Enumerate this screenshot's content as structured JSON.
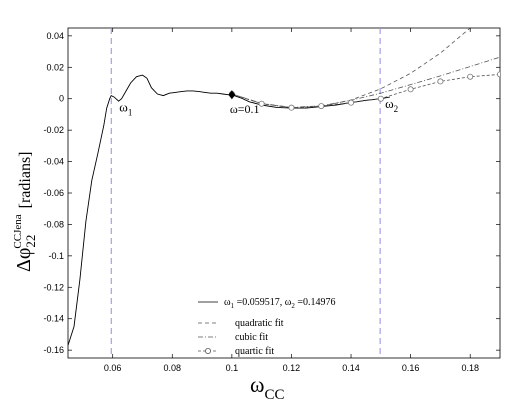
{
  "chart_data": {
    "type": "line",
    "xlabel": "ω",
    "xlabel_sub": "CC",
    "ylabel": "Δφ",
    "ylabel_sub": "22",
    "ylabel_sup": "CCJena",
    "ylabel_unit": "[radians]",
    "xlim": [
      0.045,
      0.19
    ],
    "ylim": [
      -0.165,
      0.045
    ],
    "xticks": [
      0.06,
      0.08,
      0.1,
      0.12,
      0.14,
      0.16,
      0.18
    ],
    "yticks": [
      -0.16,
      -0.14,
      -0.12,
      -0.1,
      -0.08,
      -0.06,
      -0.04,
      -0.02,
      0,
      0.02,
      0.04
    ],
    "grid": false,
    "legend_position": "bottom-center",
    "vlines": [
      {
        "x": 0.059517,
        "label": "ω",
        "label_sub": "1",
        "color": "#8f8fe3"
      },
      {
        "x": 0.14976,
        "label": "ω",
        "label_sub": "2",
        "color": "#8f8fe3"
      }
    ],
    "marker_point": {
      "x": 0.1,
      "y": 0.0025,
      "label": "ω=0.1"
    },
    "series": [
      {
        "name": "ω1 =0.059517, ω2 =0.14976",
        "style": "solid",
        "x": [
          0.045,
          0.047,
          0.049,
          0.051,
          0.053,
          0.055,
          0.057,
          0.058,
          0.059,
          0.0595,
          0.0605,
          0.062,
          0.063,
          0.0645,
          0.066,
          0.068,
          0.07,
          0.0715,
          0.073,
          0.075,
          0.077,
          0.079,
          0.081,
          0.083,
          0.085,
          0.087,
          0.089,
          0.091,
          0.093,
          0.095,
          0.097,
          0.099,
          0.1,
          0.103,
          0.106,
          0.11,
          0.115,
          0.12,
          0.125,
          0.13,
          0.135,
          0.14,
          0.145,
          0.15,
          0.153
        ],
        "y": [
          -0.157,
          -0.145,
          -0.115,
          -0.078,
          -0.052,
          -0.035,
          -0.017,
          -0.006,
          0.0,
          0.002,
          0.001,
          -0.0015,
          0.0,
          0.005,
          0.01,
          0.014,
          0.015,
          0.013,
          0.007,
          0.003,
          0.002,
          0.0035,
          0.004,
          0.0045,
          0.005,
          0.005,
          0.0045,
          0.004,
          0.0035,
          0.0035,
          0.003,
          0.0025,
          0.0025,
          0.0005,
          -0.002,
          -0.004,
          -0.0055,
          -0.006,
          -0.006,
          -0.005,
          -0.004,
          -0.0025,
          -0.001,
          0.0,
          0.001
        ]
      },
      {
        "name": "quadratic fit",
        "style": "dashed",
        "x": [
          0.1,
          0.11,
          0.12,
          0.13,
          0.14,
          0.15,
          0.16,
          0.17,
          0.18,
          0.19
        ],
        "y": [
          0.003,
          -0.0032,
          -0.0057,
          -0.0048,
          -0.0008,
          0.0063,
          0.0162,
          0.029,
          0.045,
          0.064
        ]
      },
      {
        "name": "cubic fit",
        "style": "dashdot",
        "x": [
          0.1,
          0.11,
          0.12,
          0.13,
          0.14,
          0.15,
          0.16,
          0.17,
          0.18,
          0.19
        ],
        "y": [
          0.003,
          -0.003,
          -0.0055,
          -0.0045,
          -0.001,
          0.0035,
          0.009,
          0.0145,
          0.0205,
          0.0265
        ]
      },
      {
        "name": "quartic fit",
        "style": "dash-circle",
        "x": [
          0.1,
          0.11,
          0.12,
          0.13,
          0.14,
          0.15,
          0.16,
          0.17,
          0.18,
          0.19
        ],
        "y": [
          0.003,
          -0.0032,
          -0.0057,
          -0.0047,
          -0.0025,
          0.0,
          0.006,
          0.011,
          0.014,
          0.0155
        ]
      }
    ],
    "legend": {
      "solid_label_a": "ω",
      "solid_sub_a": "1",
      "solid_val_a": " =0.059517, ",
      "solid_label_b": "ω",
      "solid_sub_b": "2",
      "solid_val_b": " =0.14976",
      "quadratic": "quadratic fit",
      "cubic": "cubic fit",
      "quartic": "quartic fit"
    }
  }
}
